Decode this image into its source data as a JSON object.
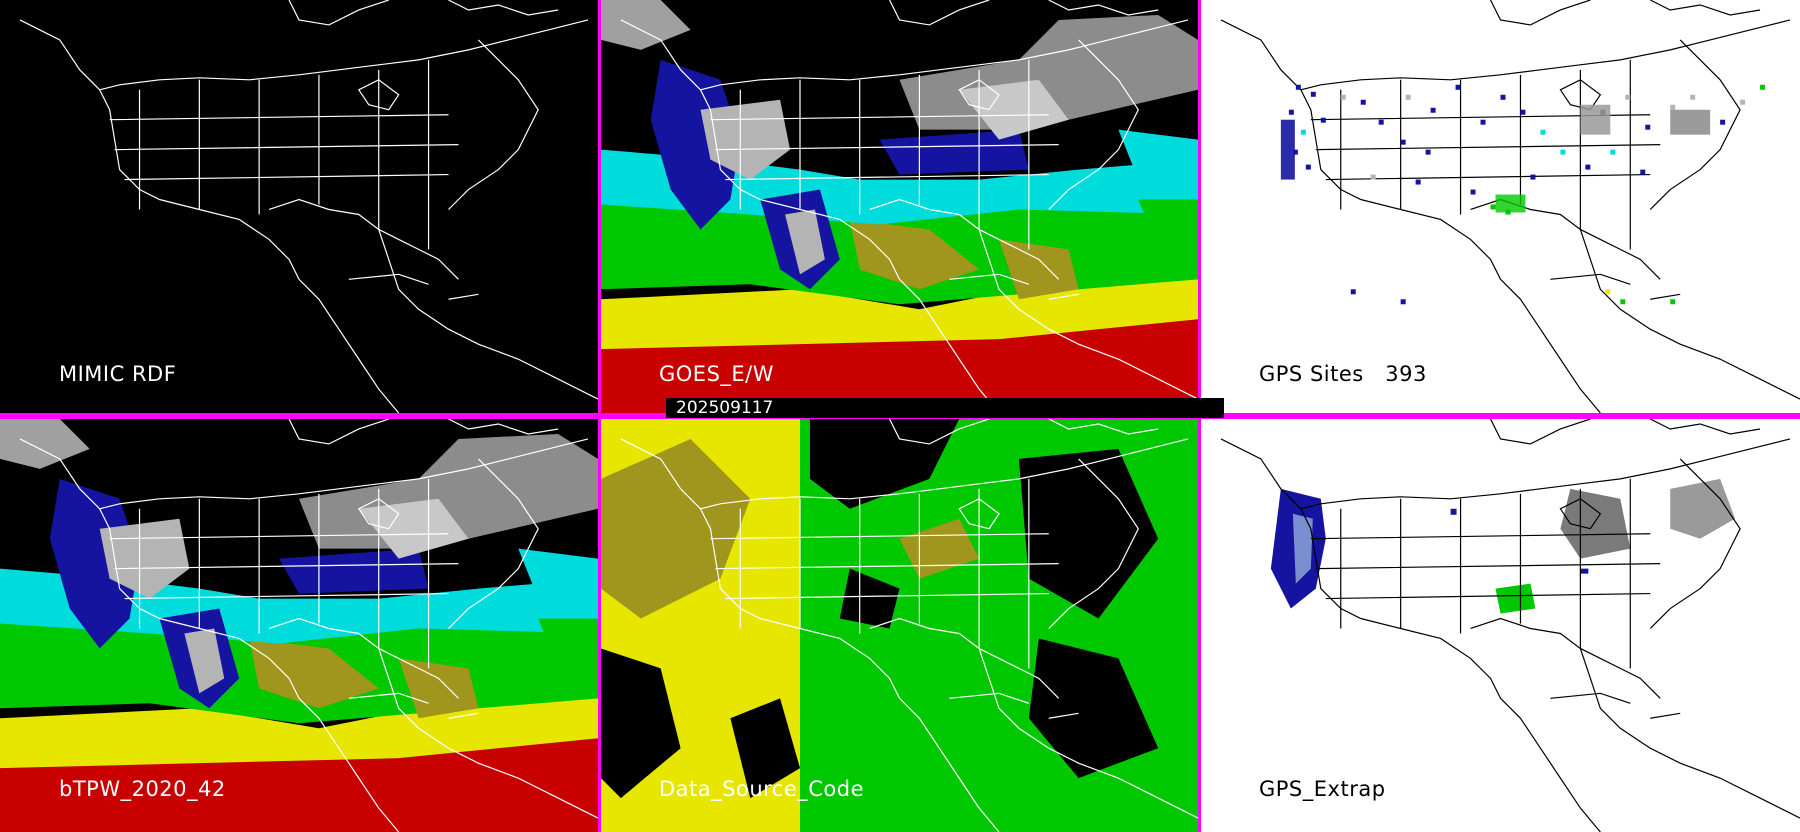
{
  "panels": {
    "mimic_rdf": {
      "label": "MIMIC RDF"
    },
    "goes": {
      "label": "GOES_E/W"
    },
    "gps_sites": {
      "label": "GPS Sites",
      "count": "393"
    },
    "btpw": {
      "label": "bTPW_2020_42"
    },
    "data_source": {
      "label": "Data_Source_Code"
    },
    "gps_extrap": {
      "label": "GPS_Extrap"
    }
  },
  "timestamp": "202509117",
  "colors": {
    "divider": "#ff00ff",
    "coast_on_dark": "#ffffff",
    "coast_on_light": "#000000",
    "palette_red": "#c80000",
    "palette_yellow": "#e6e600",
    "palette_olive": "#a0961e",
    "palette_green": "#00c800",
    "palette_cyan": "#00dcdc",
    "palette_blue": "#1414a0",
    "palette_gray": "#b4b4b4"
  }
}
